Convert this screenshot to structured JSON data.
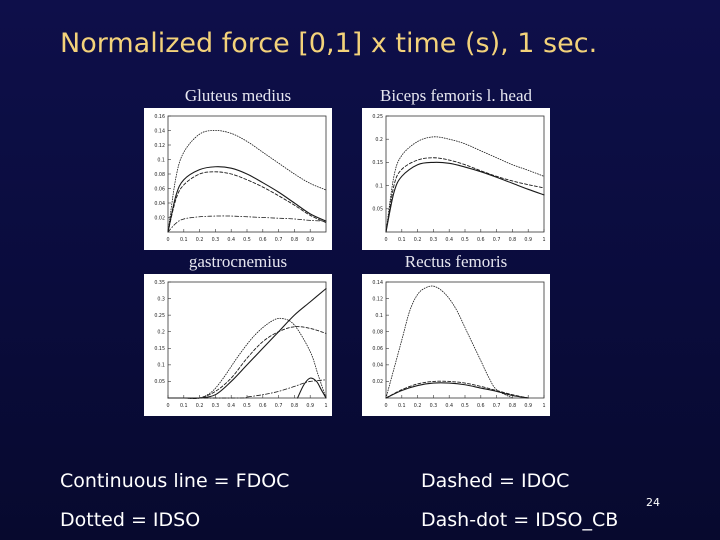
{
  "slide": {
    "title": "Normalized force [0,1] x time (s), 1 sec.",
    "page_number": "24"
  },
  "legend": {
    "continuous": "Continuous line = FDOC",
    "dashed": "Dashed = IDOC",
    "dotted": "Dotted = IDSO",
    "dashdot": "Dash-dot = IDSO_CB"
  },
  "chart_data": [
    {
      "type": "line",
      "title": "Gluteus medius",
      "xlim": [
        0,
        1
      ],
      "ylim": [
        0,
        0.16
      ],
      "x_ticks": [
        "0",
        "0.1",
        "0.2",
        "0.3",
        "0.4",
        "0.5",
        "0.6",
        "0.7",
        "0.8",
        "0.9"
      ],
      "y_ticks": [
        "0.02",
        "0.04",
        "0.06",
        "0.08",
        "0.1",
        "0.12",
        "0.14",
        "0.16"
      ],
      "series": [
        {
          "style": "dotted",
          "x": [
            0,
            0.05,
            0.1,
            0.2,
            0.3,
            0.4,
            0.5,
            0.6,
            0.7,
            0.8,
            0.9,
            1.0
          ],
          "y": [
            0,
            0.075,
            0.11,
            0.135,
            0.14,
            0.136,
            0.125,
            0.11,
            0.095,
            0.08,
            0.067,
            0.058
          ]
        },
        {
          "style": "solid",
          "x": [
            0,
            0.05,
            0.1,
            0.2,
            0.3,
            0.4,
            0.5,
            0.6,
            0.7,
            0.8,
            0.9,
            1.0
          ],
          "y": [
            0,
            0.05,
            0.072,
            0.086,
            0.09,
            0.088,
            0.08,
            0.068,
            0.055,
            0.04,
            0.025,
            0.015
          ]
        },
        {
          "style": "dashed",
          "x": [
            0,
            0.05,
            0.1,
            0.2,
            0.3,
            0.4,
            0.5,
            0.6,
            0.7,
            0.8,
            0.9,
            1.0
          ],
          "y": [
            0,
            0.045,
            0.065,
            0.08,
            0.083,
            0.08,
            0.072,
            0.062,
            0.05,
            0.037,
            0.023,
            0.013
          ]
        },
        {
          "style": "dashdot",
          "x": [
            0,
            0.05,
            0.1,
            0.2,
            0.3,
            0.4,
            0.5,
            0.6,
            0.7,
            0.8,
            0.9,
            1.0
          ],
          "y": [
            0,
            0.012,
            0.018,
            0.021,
            0.022,
            0.022,
            0.021,
            0.02,
            0.019,
            0.018,
            0.016,
            0.015
          ]
        }
      ]
    },
    {
      "type": "line",
      "title": "Biceps femoris l. head",
      "xlim": [
        0,
        1
      ],
      "ylim": [
        0,
        0.25
      ],
      "x_ticks": [
        "0",
        "0.1",
        "0.2",
        "0.3",
        "0.4",
        "0.5",
        "0.6",
        "0.7",
        "0.8",
        "0.9",
        "1"
      ],
      "y_ticks": [
        "0.05",
        "0.1",
        "0.15",
        "0.2",
        "0.25"
      ],
      "series": [
        {
          "style": "dotted",
          "x": [
            0,
            0.05,
            0.1,
            0.2,
            0.3,
            0.4,
            0.5,
            0.6,
            0.7,
            0.8,
            0.9,
            1.0
          ],
          "y": [
            0,
            0.12,
            0.165,
            0.195,
            0.205,
            0.2,
            0.19,
            0.175,
            0.16,
            0.145,
            0.133,
            0.12
          ]
        },
        {
          "style": "dashed",
          "x": [
            0,
            0.05,
            0.1,
            0.2,
            0.3,
            0.4,
            0.5,
            0.6,
            0.7,
            0.8,
            0.9,
            1.0
          ],
          "y": [
            0,
            0.1,
            0.135,
            0.155,
            0.16,
            0.155,
            0.145,
            0.132,
            0.12,
            0.11,
            0.102,
            0.095
          ]
        },
        {
          "style": "solid",
          "x": [
            0,
            0.05,
            0.1,
            0.2,
            0.3,
            0.4,
            0.5,
            0.6,
            0.7,
            0.8,
            0.9,
            1.0
          ],
          "y": [
            0,
            0.085,
            0.12,
            0.145,
            0.15,
            0.148,
            0.14,
            0.13,
            0.118,
            0.105,
            0.092,
            0.08
          ]
        }
      ]
    },
    {
      "type": "line",
      "title": "gastrocnemius",
      "xlim": [
        0,
        1
      ],
      "ylim": [
        0,
        0.35
      ],
      "x_ticks": [
        "0",
        "0.1",
        "0.2",
        "0.3",
        "0.4",
        "0.5",
        "0.6",
        "0.7",
        "0.8",
        "0.9",
        "1"
      ],
      "y_ticks": [
        "0.05",
        "0.1",
        "0.15",
        "0.2",
        "0.25",
        "0.3",
        "0.35"
      ],
      "series": [
        {
          "style": "solid",
          "x": [
            0,
            0.1,
            0.2,
            0.3,
            0.4,
            0.5,
            0.6,
            0.7,
            0.8,
            0.9,
            1.0
          ],
          "y": [
            0,
            0,
            0,
            0.01,
            0.05,
            0.1,
            0.15,
            0.2,
            0.25,
            0.29,
            0.33
          ]
        },
        {
          "style": "dotted",
          "x": [
            0,
            0.1,
            0.2,
            0.28,
            0.35,
            0.45,
            0.55,
            0.65,
            0.72,
            0.8,
            0.9,
            0.95,
            1.0
          ],
          "y": [
            0,
            0,
            0,
            0.02,
            0.06,
            0.13,
            0.19,
            0.23,
            0.24,
            0.22,
            0.14,
            0.07,
            0
          ]
        },
        {
          "style": "dashed",
          "x": [
            0,
            0.1,
            0.2,
            0.3,
            0.4,
            0.5,
            0.6,
            0.7,
            0.8,
            0.9,
            1.0
          ],
          "y": [
            0,
            0,
            0,
            0.02,
            0.06,
            0.12,
            0.17,
            0.2,
            0.215,
            0.21,
            0.195
          ]
        },
        {
          "style": "dashdot",
          "x": [
            0,
            0.45,
            0.5,
            0.6,
            0.7,
            0.8,
            0.86,
            0.9,
            1.0
          ],
          "y": [
            0,
            0,
            0.003,
            0.01,
            0.02,
            0.035,
            0.045,
            0.05,
            0.055
          ]
        },
        {
          "style": "solid",
          "x": [
            0.82,
            0.86,
            0.9,
            0.94,
            0.97,
            1.0
          ],
          "y": [
            0,
            0.04,
            0.06,
            0.05,
            0.025,
            0
          ]
        }
      ]
    },
    {
      "type": "line",
      "title": "Rectus femoris",
      "xlim": [
        0,
        1
      ],
      "ylim": [
        0,
        0.14
      ],
      "x_ticks": [
        "0",
        "0.1",
        "0.2",
        "0.3",
        "0.4",
        "0.5",
        "0.6",
        "0.7",
        "0.8",
        "0.9",
        "1"
      ],
      "y_ticks": [
        "0.02",
        "0.04",
        "0.06",
        "0.08",
        "0.1",
        "0.12",
        "0.14"
      ],
      "series": [
        {
          "style": "dotted",
          "x": [
            0,
            0.1,
            0.15,
            0.2,
            0.25,
            0.3,
            0.35,
            0.4,
            0.45,
            0.5,
            0.55,
            0.6,
            0.65,
            0.7,
            0.8
          ],
          "y": [
            0,
            0.07,
            0.105,
            0.125,
            0.133,
            0.135,
            0.13,
            0.12,
            0.105,
            0.085,
            0.065,
            0.045,
            0.025,
            0.01,
            0
          ]
        },
        {
          "style": "dashed",
          "x": [
            0,
            0.1,
            0.2,
            0.3,
            0.4,
            0.5,
            0.6,
            0.7,
            0.8,
            0.9
          ],
          "y": [
            0,
            0.01,
            0.017,
            0.02,
            0.02,
            0.018,
            0.014,
            0.009,
            0.004,
            0
          ]
        },
        {
          "style": "solid",
          "x": [
            0,
            0.1,
            0.2,
            0.3,
            0.4,
            0.5,
            0.6,
            0.7,
            0.8,
            0.9
          ],
          "y": [
            0,
            0.009,
            0.015,
            0.018,
            0.018,
            0.016,
            0.012,
            0.008,
            0.003,
            0
          ]
        }
      ]
    }
  ]
}
